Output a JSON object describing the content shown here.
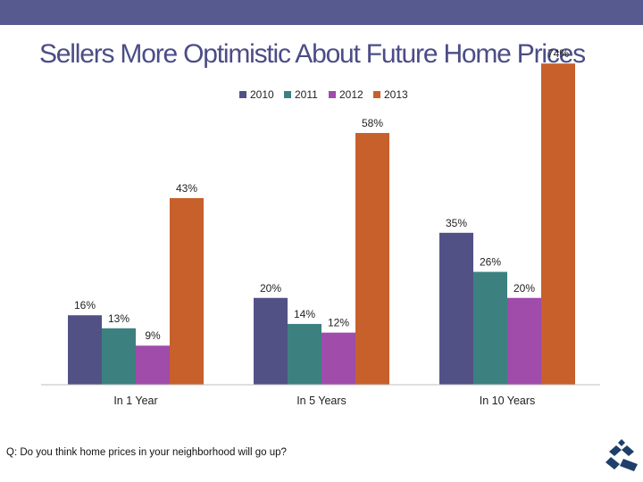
{
  "slide": {
    "title": "Sellers More Optimistic About Future Home Prices",
    "footnote": "Q: Do you think home prices in your neighborhood will go up?",
    "accent_color": "#575a8f",
    "logo_icon": "house-logo-icon"
  },
  "chart_data": {
    "type": "bar",
    "title": "",
    "xlabel": "",
    "ylabel": "",
    "ylim": [
      0,
      80
    ],
    "grid": false,
    "legend_position": "top",
    "categories": [
      "In 1 Year",
      "In 5 Years",
      "In 10 Years"
    ],
    "series": [
      {
        "name": "2010",
        "color": "#525186",
        "values": [
          16,
          20,
          35
        ],
        "labels": [
          "16%",
          "20%",
          "35%"
        ]
      },
      {
        "name": "2011",
        "color": "#3c8180",
        "values": [
          13,
          14,
          26
        ],
        "labels": [
          "13%",
          "14%",
          "26%"
        ]
      },
      {
        "name": "2012",
        "color": "#9f4caa",
        "values": [
          9,
          12,
          20
        ],
        "labels": [
          "9%",
          "12%",
          "20%"
        ]
      },
      {
        "name": "2013",
        "color": "#c7602b",
        "values": [
          43,
          58,
          74
        ],
        "labels": [
          "43%",
          "58%",
          "74%"
        ]
      }
    ]
  }
}
